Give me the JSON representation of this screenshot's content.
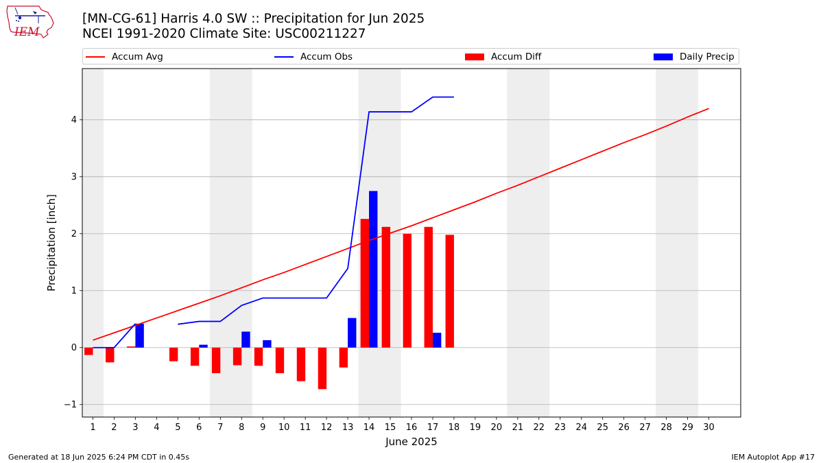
{
  "header": {
    "title_line1": "[MN-CG-61] Harris 4.0 SW :: Precipitation for Jun 2025",
    "title_line2": "NCEI 1991-2020 Climate Site: USC00211227",
    "logo_text": "IEM"
  },
  "footer": {
    "left": "Generated at 18 Jun 2025 6:24 PM CDT in 0.45s",
    "right": "IEM Autoplot App #17"
  },
  "colors": {
    "avg": "#ff0000",
    "obs": "#0000ff",
    "diff": "#ff0000",
    "daily": "#0000ff",
    "weekend_band": "#eeeeee",
    "grid": "#b0b0b0"
  },
  "chart_data": {
    "type": "bar",
    "xlabel": "June 2025",
    "ylabel": "Precipitation [inch]",
    "xlim": [
      0.5,
      31.5
    ],
    "ylim": [
      -1.22,
      4.9
    ],
    "yticks": [
      -1,
      0,
      1,
      2,
      3,
      4
    ],
    "days": [
      1,
      2,
      3,
      4,
      5,
      6,
      7,
      8,
      9,
      10,
      11,
      12,
      13,
      14,
      15,
      16,
      17,
      18,
      19,
      20,
      21,
      22,
      23,
      24,
      25,
      26,
      27,
      28,
      29,
      30
    ],
    "weekend_bands": [
      [
        0.5,
        1.5
      ],
      [
        6.5,
        8.5
      ],
      [
        13.5,
        15.5
      ],
      [
        20.5,
        22.5
      ],
      [
        27.5,
        29.5
      ]
    ],
    "legend": [
      "Accum Avg",
      "Accum Obs",
      "Accum Diff",
      "Daily Precip"
    ],
    "series": [
      {
        "name": "Accum Avg",
        "type": "line",
        "x": [
          1,
          2,
          3,
          4,
          5,
          6,
          7,
          8,
          9,
          10,
          11,
          12,
          13,
          14,
          15,
          16,
          17,
          18,
          19,
          20,
          21,
          22,
          23,
          24,
          25,
          26,
          27,
          28,
          29,
          30
        ],
        "values": [
          0.13,
          0.26,
          0.39,
          0.52,
          0.65,
          0.78,
          0.91,
          1.05,
          1.19,
          1.32,
          1.46,
          1.6,
          1.74,
          1.88,
          2.01,
          2.14,
          2.28,
          2.42,
          2.56,
          2.71,
          2.85,
          3.0,
          3.15,
          3.3,
          3.45,
          3.6,
          3.74,
          3.89,
          4.05,
          4.2
        ]
      },
      {
        "name": "Accum Obs",
        "type": "line",
        "segments": [
          {
            "x": [
              1,
              2,
              3
            ],
            "values": [
              0.0,
              0.0,
              0.42
            ]
          },
          {
            "x": [
              5,
              6,
              7,
              8,
              9,
              10,
              11,
              12,
              13,
              14,
              15,
              16,
              17,
              18
            ],
            "values": [
              0.41,
              0.46,
              0.46,
              0.74,
              0.87,
              0.87,
              0.87,
              0.87,
              1.39,
              4.14,
              4.14,
              4.14,
              4.4,
              4.4
            ]
          }
        ]
      },
      {
        "name": "Accum Diff",
        "type": "bar",
        "x": [
          1,
          2,
          3,
          5,
          6,
          7,
          8,
          9,
          10,
          11,
          12,
          13,
          14,
          15,
          16,
          17,
          18
        ],
        "values": [
          -0.13,
          -0.26,
          0.02,
          -0.24,
          -0.32,
          -0.45,
          -0.31,
          -0.32,
          -0.45,
          -0.59,
          -0.73,
          -0.35,
          2.26,
          2.12,
          2.0,
          2.12,
          1.98
        ]
      },
      {
        "name": "Daily Precip",
        "type": "bar",
        "x": [
          3,
          6,
          8,
          9,
          13,
          14,
          17
        ],
        "values": [
          0.42,
          0.05,
          0.28,
          0.13,
          0.52,
          2.75,
          0.26
        ]
      }
    ]
  }
}
